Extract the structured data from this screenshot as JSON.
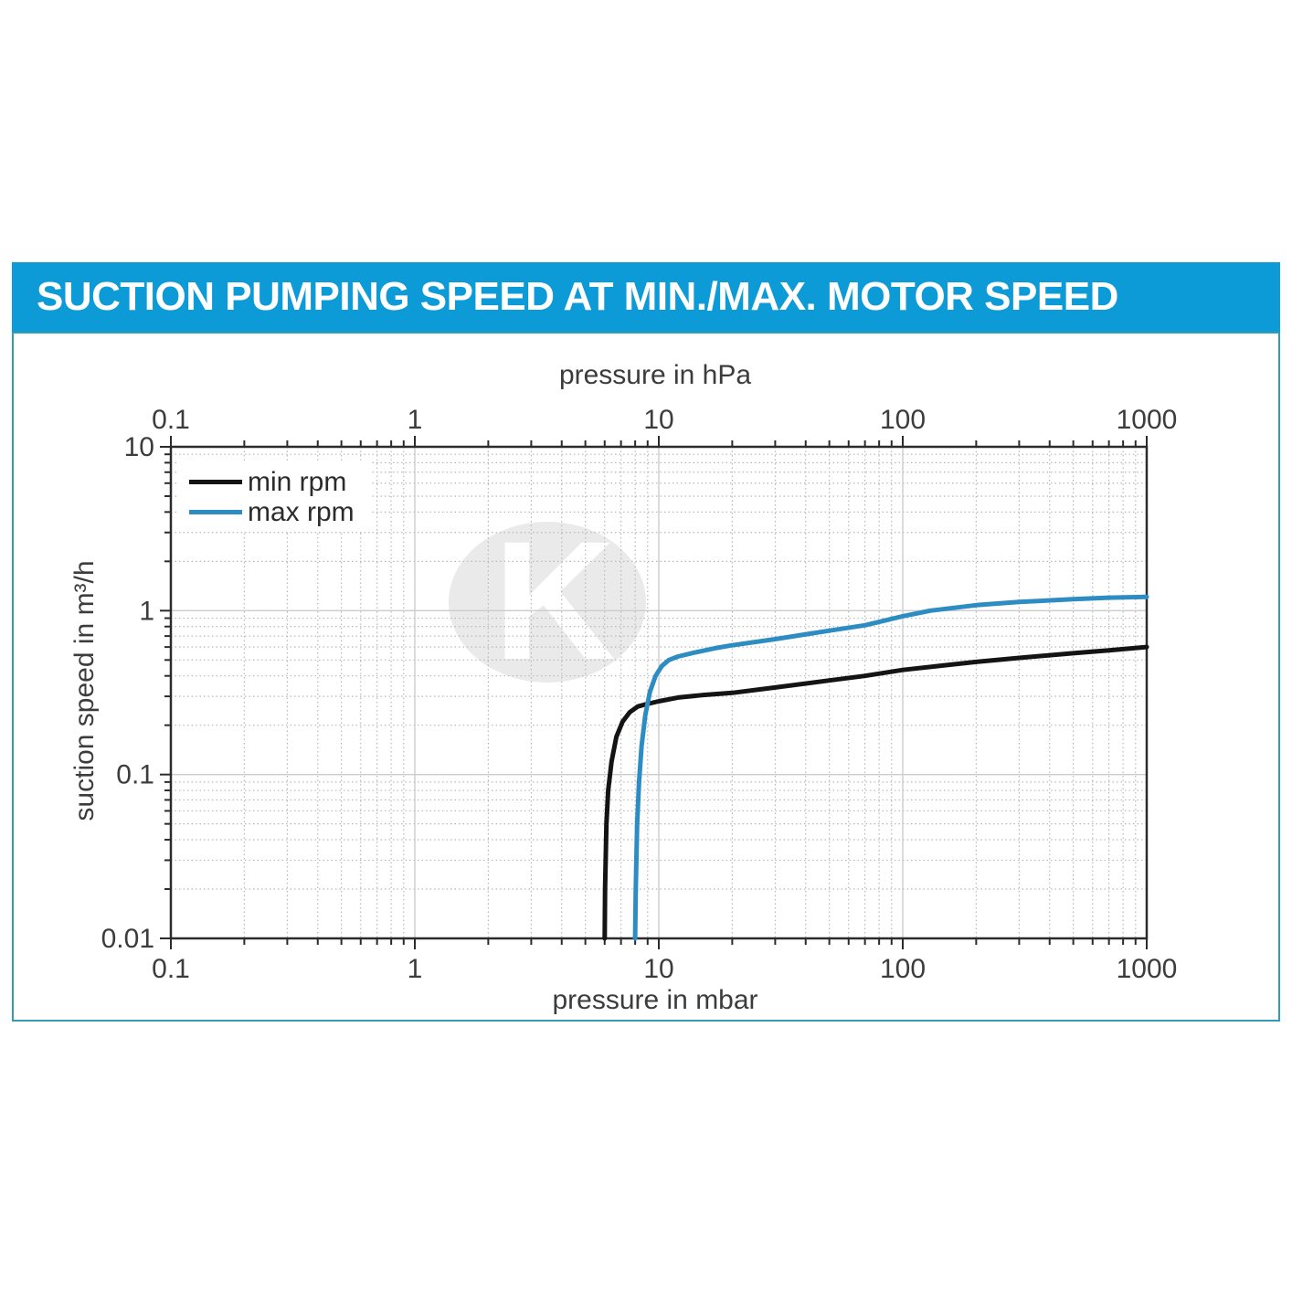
{
  "header": {
    "title": "SUCTION PUMPING SPEED AT MIN./MAX. MOTOR SPEED",
    "bg_color": "#0d9bd8"
  },
  "frame": {
    "border_color": "#2f9eb5"
  },
  "chart_data": {
    "type": "line",
    "x_scale": "log",
    "y_scale": "log",
    "xlim": [
      0.1,
      1000
    ],
    "ylim": [
      0.01,
      10
    ],
    "top_xlabel": "pressure in hPa",
    "bottom_xlabel": "pressure in mbar",
    "ylabel": "suction speed in m³/h",
    "x_ticks": [
      0.1,
      1,
      10,
      100,
      1000
    ],
    "x_tick_labels": [
      "0.1",
      "1",
      "10",
      "100",
      "1000"
    ],
    "y_ticks": [
      0.01,
      0.1,
      1,
      10
    ],
    "y_tick_labels": [
      "0.01",
      "0.1",
      "1",
      "10"
    ],
    "grid": {
      "minor_style": "dotted",
      "minor_color": "#b8b8b8",
      "major_style": "solid",
      "major_color": "#cccccc"
    },
    "legend": {
      "position": "top-left"
    },
    "watermark": {
      "shape": "ellipse",
      "letter": "K",
      "ellipse_color": "#eaeaea",
      "letter_color": "#ffffff"
    },
    "series": [
      {
        "name": "min rpm",
        "color": "#141414",
        "points": [
          [
            6,
            0.01
          ],
          [
            6.02,
            0.02
          ],
          [
            6.1,
            0.05
          ],
          [
            6.2,
            0.08
          ],
          [
            6.4,
            0.12
          ],
          [
            6.7,
            0.17
          ],
          [
            7.1,
            0.21
          ],
          [
            7.6,
            0.24
          ],
          [
            8.2,
            0.26
          ],
          [
            9,
            0.27
          ],
          [
            10,
            0.28
          ],
          [
            12,
            0.295
          ],
          [
            15,
            0.305
          ],
          [
            20,
            0.315
          ],
          [
            30,
            0.34
          ],
          [
            50,
            0.375
          ],
          [
            70,
            0.4
          ],
          [
            100,
            0.435
          ],
          [
            150,
            0.465
          ],
          [
            200,
            0.487
          ],
          [
            300,
            0.515
          ],
          [
            500,
            0.55
          ],
          [
            700,
            0.572
          ],
          [
            1000,
            0.6
          ]
        ]
      },
      {
        "name": "max rpm",
        "color": "#2d8dc3",
        "points": [
          [
            8,
            0.01
          ],
          [
            8.05,
            0.02
          ],
          [
            8.15,
            0.05
          ],
          [
            8.3,
            0.09
          ],
          [
            8.5,
            0.15
          ],
          [
            8.8,
            0.23
          ],
          [
            9.2,
            0.32
          ],
          [
            9.7,
            0.4
          ],
          [
            10.3,
            0.46
          ],
          [
            11,
            0.5
          ],
          [
            12,
            0.525
          ],
          [
            14,
            0.555
          ],
          [
            17,
            0.59
          ],
          [
            20,
            0.615
          ],
          [
            30,
            0.67
          ],
          [
            50,
            0.755
          ],
          [
            70,
            0.815
          ],
          [
            100,
            0.925
          ],
          [
            130,
            1.0
          ],
          [
            200,
            1.08
          ],
          [
            300,
            1.13
          ],
          [
            500,
            1.175
          ],
          [
            700,
            1.2
          ],
          [
            1000,
            1.215
          ]
        ]
      }
    ]
  }
}
